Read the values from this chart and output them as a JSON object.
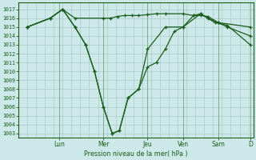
{
  "background_color": "#cce8e8",
  "grid_color": "#aacccc",
  "line_color": "#1a5c1a",
  "ylabel": "Pression niveau de la mer( hPa )",
  "ylim": [
    1002.5,
    1017.8
  ],
  "xlim": [
    -0.3,
    13.0
  ],
  "yticks": [
    1003,
    1004,
    1005,
    1006,
    1007,
    1008,
    1009,
    1010,
    1011,
    1012,
    1013,
    1014,
    1015,
    1016,
    1017
  ],
  "day_labels": [
    "Lun",
    "Mer",
    "Jeu",
    "Ven",
    "Sam",
    "D"
  ],
  "day_positions": [
    2.0,
    4.5,
    7.0,
    9.0,
    11.0,
    12.8
  ],
  "series1_x": [
    0.2,
    1.5,
    2.2,
    2.9,
    4.5,
    4.9,
    5.3,
    5.7,
    6.1,
    6.5,
    7.0,
    7.5,
    8.0,
    9.0,
    9.6,
    10.0,
    10.4,
    11.0,
    12.8
  ],
  "series1_y": [
    1015,
    1016,
    1017,
    1016,
    1016,
    1016,
    1016.2,
    1016.3,
    1016.3,
    1016.3,
    1016.4,
    1016.5,
    1016.5,
    1016.5,
    1016.3,
    1016.3,
    1016.2,
    1015.5,
    1015.0
  ],
  "series2_x": [
    0.2,
    1.5,
    2.2,
    2.9,
    3.5,
    4.0,
    4.5,
    5.0,
    5.4,
    5.9,
    6.5,
    7.0,
    7.5,
    8.0,
    8.5,
    9.0,
    9.6,
    10.0,
    10.8,
    11.5,
    12.8
  ],
  "series2_y": [
    1015,
    1016,
    1017,
    1015,
    1013,
    1010,
    1006,
    1003,
    1003.3,
    1007,
    1008,
    1010.5,
    1011,
    1012.5,
    1014.5,
    1015,
    1016.3,
    1016.5,
    1015.5,
    1015.2,
    1013
  ],
  "series3_x": [
    0.2,
    1.5,
    2.2,
    2.9,
    3.5,
    4.0,
    4.5,
    5.0,
    5.4,
    5.9,
    6.5,
    7.0,
    8.0,
    9.0,
    10.0,
    10.4,
    11.0,
    11.5,
    12.8
  ],
  "series3_y": [
    1015,
    1016,
    1017,
    1015,
    1013,
    1010,
    1006,
    1003,
    1003.3,
    1007,
    1008,
    1012.5,
    1015,
    1015,
    1016.5,
    1016,
    1015.5,
    1015.0,
    1014.0
  ]
}
